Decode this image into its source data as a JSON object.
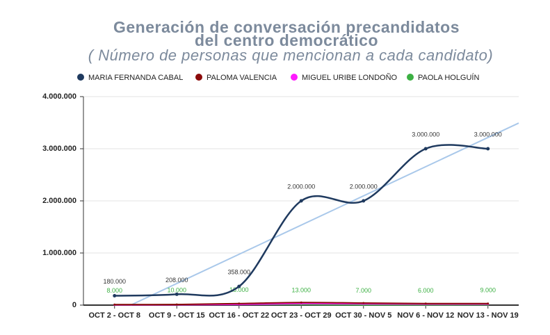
{
  "chart_data": {
    "type": "line",
    "title": [
      "Generación de conversación precandidatos",
      "del centro democrático"
    ],
    "subtitle": "( Número de personas que mencionan a cada candidato)",
    "categories": [
      "OCT 2 - OCT 8",
      "OCT 9 - OCT 15",
      "OCT 16 - OCT 22",
      "OCT 23 - OCT 29",
      "OCT 30 - NOV 5",
      "NOV 6 - NOV 12",
      "NOV 13 - NOV 19"
    ],
    "series": [
      {
        "name": "MARIA FERNANDA CABAL",
        "color": "#1f3a5f",
        "values": [
          180000,
          208000,
          358000,
          2000000,
          2000000,
          3000000,
          3000000
        ],
        "value_labels": [
          "180.000",
          "208.000",
          "358.000",
          "2.000.000",
          "2.000.000",
          "3.000.000",
          "3.000.000"
        ]
      },
      {
        "name": "PALOMA VALENCIA",
        "color": "#8b0a0a",
        "values": [
          10000,
          12000,
          30000,
          50000,
          40000,
          30000,
          30000
        ]
      },
      {
        "name": "MIGUEL URIBE LONDOÑO",
        "color": "#ff1aff",
        "values": [
          5000,
          6000,
          15000,
          30000,
          25000,
          20000,
          20000
        ]
      },
      {
        "name": "PAOLA HOLGUÍN",
        "color": "#3cb043",
        "values": [
          8000,
          10000,
          18000,
          13000,
          7000,
          6000,
          9000
        ],
        "value_labels": [
          "8.000",
          "10.000",
          "18.000",
          "13.000",
          "7.000",
          "6.000",
          "9.000"
        ]
      }
    ],
    "ylim": [
      0,
      4000000
    ],
    "yticks": [
      {
        "value": 0,
        "label": "0"
      },
      {
        "value": 1000000,
        "label": "1.000.000"
      },
      {
        "value": 2000000,
        "label": "2.000.000"
      },
      {
        "value": 3000000,
        "label": "3.000.000"
      },
      {
        "value": 4000000,
        "label": "4.000.000"
      }
    ],
    "grid": true,
    "trendline": true,
    "trendline_color": "#a9c8ea",
    "legend": "top"
  }
}
